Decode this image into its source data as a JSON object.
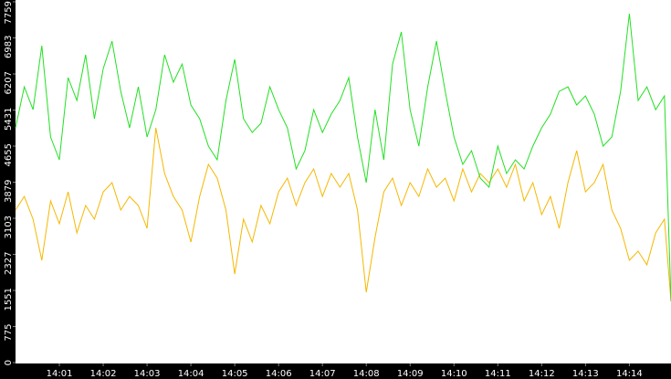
{
  "chart_data": {
    "type": "line",
    "x": [
      0,
      0.2,
      0.4,
      0.6,
      0.8,
      1,
      1.2,
      1.4,
      1.6,
      1.8,
      2,
      2.2,
      2.4,
      2.6,
      2.8,
      3,
      3.2,
      3.4,
      3.6,
      3.8,
      4,
      4.2,
      4.4,
      4.6,
      4.8,
      5,
      5.2,
      5.4,
      5.6,
      5.8,
      6,
      6.2,
      6.4,
      6.6,
      6.8,
      7,
      7.2,
      7.4,
      7.6,
      7.8,
      8,
      8.2,
      8.4,
      8.6,
      8.8,
      9,
      9.2,
      9.4,
      9.6,
      9.8,
      10,
      10.2,
      10.4,
      10.6,
      10.8,
      11,
      11.2,
      11.4,
      11.6,
      11.8,
      12,
      12.2,
      12.4,
      12.6,
      12.8,
      13,
      13.2,
      13.4,
      13.6,
      13.8,
      14,
      14.2,
      14.4,
      14.6,
      14.8,
      14.95
    ],
    "series": [
      {
        "color": "#22e022",
        "values": [
          5048,
          5931,
          5440,
          6815,
          4851,
          4360,
          6128,
          5637,
          6619,
          5244,
          6324,
          6913,
          5833,
          5048,
          5931,
          4851,
          5440,
          6619,
          6030,
          6422,
          5539,
          5244,
          4655,
          4360,
          5637,
          6521,
          5244,
          4949,
          5146,
          5931,
          5440,
          5048,
          4164,
          4557,
          5440,
          4949,
          5342,
          5637,
          6128,
          4851,
          3869,
          5440,
          4360,
          6422,
          7110,
          5440,
          4655,
          5931,
          6913,
          5833,
          4851,
          4262,
          4557,
          3967,
          3771,
          4655,
          4066,
          4360,
          4164,
          4655,
          5048,
          5342,
          5833,
          5931,
          5539,
          5735,
          5342,
          4655,
          4851,
          5833,
          7503,
          5637,
          5931,
          5440,
          5735,
          1316
        ]
      },
      {
        "color": "#f5b800",
        "values": [
          3280,
          3574,
          3083,
          2200,
          3476,
          2985,
          3672,
          2789,
          3378,
          3083,
          3672,
          3869,
          3280,
          3574,
          3378,
          2887,
          5048,
          4066,
          3574,
          3280,
          2592,
          3574,
          4262,
          3967,
          3280,
          1905,
          3083,
          2592,
          3378,
          2985,
          3672,
          3967,
          3378,
          3869,
          4164,
          3574,
          4066,
          3771,
          4066,
          3280,
          1512,
          2691,
          3672,
          3967,
          3378,
          3869,
          3574,
          4164,
          3771,
          3967,
          3476,
          4164,
          3672,
          4066,
          3869,
          4164,
          3771,
          4262,
          3476,
          3869,
          3182,
          3574,
          2887,
          3869,
          4557,
          3672,
          3869,
          4262,
          3280,
          2887,
          2200,
          2396,
          2102,
          2789,
          3083,
          1316
        ]
      }
    ],
    "xlim": [
      0,
      14.95
    ],
    "xticks": [
      {
        "value": 1,
        "label": "14:01"
      },
      {
        "value": 2,
        "label": "14:02"
      },
      {
        "value": 3,
        "label": "14:03"
      },
      {
        "value": 4,
        "label": "14:04"
      },
      {
        "value": 5,
        "label": "14:05"
      },
      {
        "value": 6,
        "label": "14:06"
      },
      {
        "value": 7,
        "label": "14:07"
      },
      {
        "value": 8,
        "label": "14:08"
      },
      {
        "value": 9,
        "label": "14:09"
      },
      {
        "value": 10,
        "label": "14:10"
      },
      {
        "value": 11,
        "label": "14:11"
      },
      {
        "value": 12,
        "label": "14:12"
      },
      {
        "value": 13,
        "label": "14:13"
      },
      {
        "value": 14,
        "label": "14:14"
      }
    ],
    "ylim": [
      0,
      7759
    ],
    "yticks": [
      0,
      775,
      1551,
      2327,
      3103,
      3879,
      4655,
      5431,
      6207,
      6983,
      7759
    ]
  }
}
